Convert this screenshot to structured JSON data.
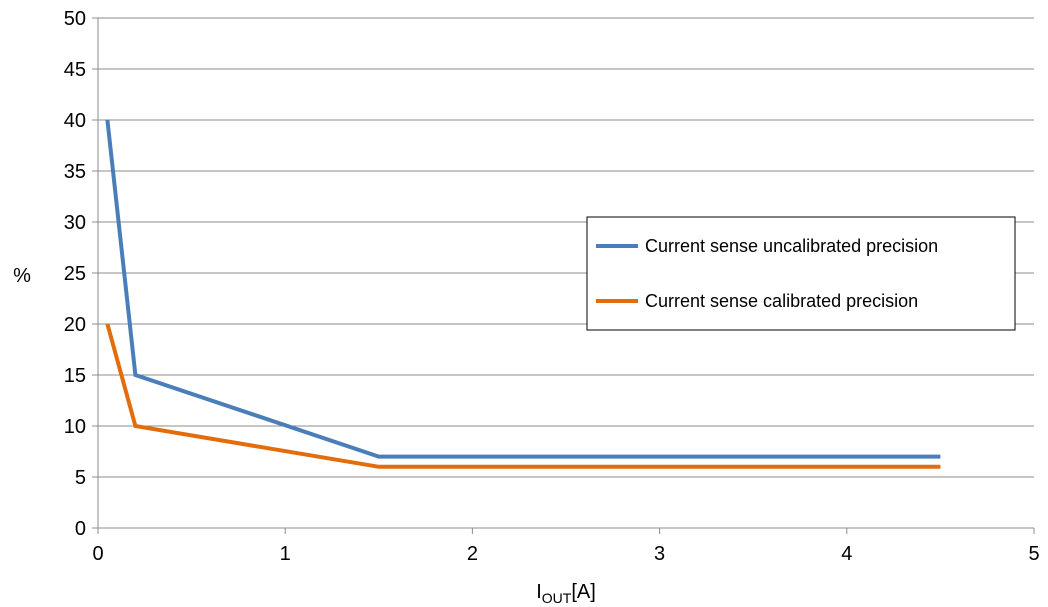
{
  "chart_data": {
    "type": "line",
    "xlabel_main": "I",
    "xlabel_sub": "OUT",
    "xlabel_unit": "[A]",
    "ylabel": "%",
    "xlim": [
      0,
      5
    ],
    "ylim": [
      0,
      50
    ],
    "xticks": [
      0,
      1,
      2,
      3,
      4,
      5
    ],
    "yticks": [
      0,
      5,
      10,
      15,
      20,
      25,
      30,
      35,
      40,
      45,
      50
    ],
    "grid": "horizontal",
    "legend_position": "right",
    "series": [
      {
        "name": "Current sense uncalibrated precision",
        "color": "#4a7ebb",
        "points": [
          [
            0.05,
            40
          ],
          [
            0.2,
            15
          ],
          [
            1.5,
            7
          ],
          [
            4.5,
            7
          ]
        ]
      },
      {
        "name": "Current sense calibrated precision",
        "color": "#e46c0a",
        "points": [
          [
            0.05,
            20
          ],
          [
            0.2,
            10
          ],
          [
            1.5,
            6
          ],
          [
            4.5,
            6
          ]
        ]
      }
    ]
  }
}
